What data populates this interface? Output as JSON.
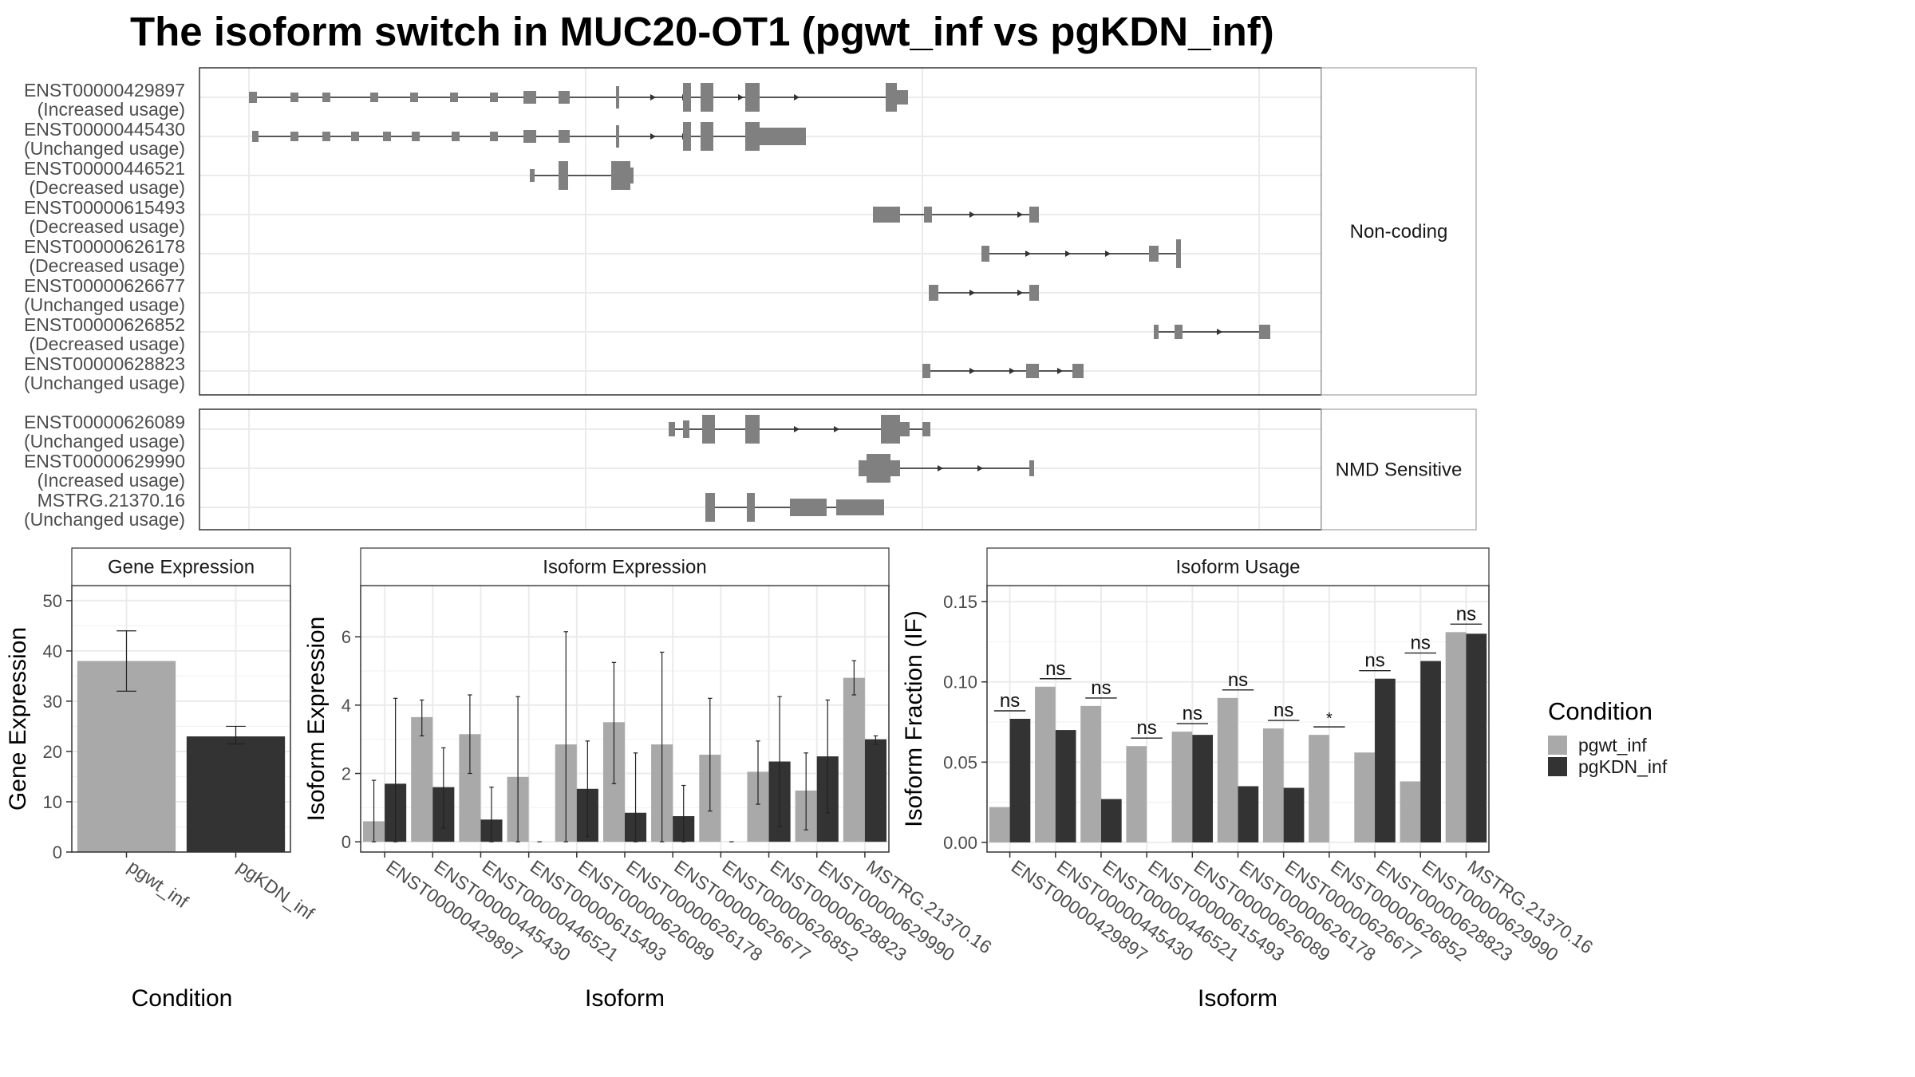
{
  "title": "The isoform switch in MUC20-OT1 (pgwt_inf vs pgKDN_inf)",
  "colors": {
    "pgwt_inf": "#a9a9a9",
    "pgKDN_inf": "#333333",
    "gene_model": "#808080"
  },
  "gene_models": {
    "non_coding": {
      "strip_label": "Non-coding",
      "isoforms": [
        {
          "id": "ENST00000429897",
          "usage": "(Increased usage)"
        },
        {
          "id": "ENST00000445430",
          "usage": "(Unchanged usage)"
        },
        {
          "id": "ENST00000446521",
          "usage": "(Decreased usage)"
        },
        {
          "id": "ENST00000615493",
          "usage": "(Decreased usage)"
        },
        {
          "id": "ENST00000626178",
          "usage": "(Decreased usage)"
        },
        {
          "id": "ENST00000626677",
          "usage": "(Unchanged usage)"
        },
        {
          "id": "ENST00000626852",
          "usage": "(Decreased usage)"
        },
        {
          "id": "ENST00000628823",
          "usage": "(Unchanged usage)"
        }
      ]
    },
    "nmd_sensitive": {
      "strip_label": "NMD Sensitive",
      "isoforms": [
        {
          "id": "ENST00000626089",
          "usage": "(Unchanged usage)"
        },
        {
          "id": "ENST00000629990",
          "usage": "(Increased usage)"
        },
        {
          "id": "MSTRG.21370.16",
          "usage": "(Unchanged usage)"
        }
      ]
    }
  },
  "legend": {
    "title": "Condition",
    "items": [
      "pgwt_inf",
      "pgKDN_inf"
    ]
  },
  "chart_data": [
    {
      "type": "bar",
      "strip": "Gene Expression",
      "xlabel": "Condition",
      "ylabel": "Gene Expression",
      "categories": [
        "pgwt_inf",
        "pgKDN_inf"
      ],
      "values": [
        38,
        23
      ],
      "error_low": [
        32,
        21.5
      ],
      "error_high": [
        44,
        25
      ],
      "ylim": [
        0,
        53
      ],
      "yticks": [
        0,
        10,
        20,
        30,
        40,
        50
      ],
      "grid": true
    },
    {
      "type": "bar",
      "strip": "Isoform Expression",
      "xlabel": "Isoform",
      "ylabel": "Isoform Expression",
      "categories": [
        "ENST00000429897",
        "ENST00000445430",
        "ENST00000446521",
        "ENST00000615493",
        "ENST00000626089",
        "ENST00000626178",
        "ENST00000626677",
        "ENST00000626852",
        "ENST00000628823",
        "ENST00000629990",
        "MSTRG.21370.16"
      ],
      "ylim": [
        -0.3,
        7.5
      ],
      "yticks": [
        0,
        2,
        4,
        6
      ],
      "grid": true,
      "series": [
        {
          "name": "pgwt_inf",
          "values": [
            0.6,
            3.65,
            3.15,
            1.9,
            2.85,
            3.5,
            2.85,
            2.55,
            2.05,
            1.5,
            4.8
          ],
          "error_low": [
            0,
            3.1,
            2.0,
            0,
            0,
            1.7,
            0,
            0.9,
            1.1,
            0.35,
            4.3
          ],
          "error_high": [
            1.8,
            4.15,
            4.3,
            4.25,
            6.15,
            5.25,
            5.55,
            4.2,
            2.95,
            2.6,
            5.3
          ]
        },
        {
          "name": "pgKDN_inf",
          "values": [
            1.7,
            1.6,
            0.65,
            0,
            1.55,
            0.85,
            0.75,
            0,
            2.35,
            2.5,
            3.0
          ],
          "error_low": [
            0,
            0.4,
            0,
            0,
            0.15,
            0,
            0,
            0,
            0.45,
            0.85,
            2.85
          ],
          "error_high": [
            4.2,
            2.75,
            1.6,
            0,
            2.95,
            2.6,
            1.65,
            0,
            4.25,
            4.15,
            3.1
          ]
        }
      ]
    },
    {
      "type": "bar",
      "strip": "Isoform Usage",
      "xlabel": "Isoform",
      "ylabel": "Isoform Fraction (IF)",
      "categories": [
        "ENST00000429897",
        "ENST00000445430",
        "ENST00000446521",
        "ENST00000615493",
        "ENST00000626089",
        "ENST00000626178",
        "ENST00000626677",
        "ENST00000626852",
        "ENST00000628823",
        "ENST00000629990",
        "MSTRG.21370.16"
      ],
      "ylim": [
        -0.006,
        0.16
      ],
      "yticks": [
        0.0,
        0.05,
        0.1,
        0.15
      ],
      "ytick_labels": [
        "0.00",
        "0.05",
        "0.10",
        "0.15"
      ],
      "grid": true,
      "series": [
        {
          "name": "pgwt_inf",
          "values": [
            0.022,
            0.097,
            0.085,
            0.06,
            0.069,
            0.09,
            0.071,
            0.067,
            0.056,
            0.038,
            0.131
          ]
        },
        {
          "name": "pgKDN_inf",
          "values": [
            0.077,
            0.07,
            0.027,
            0,
            0.067,
            0.035,
            0.034,
            0,
            0.102,
            0.113,
            0.13
          ]
        }
      ],
      "significance": [
        "ns",
        "ns",
        "ns",
        "ns",
        "ns",
        "ns",
        "ns",
        "*",
        "ns",
        "ns",
        "ns"
      ]
    }
  ]
}
